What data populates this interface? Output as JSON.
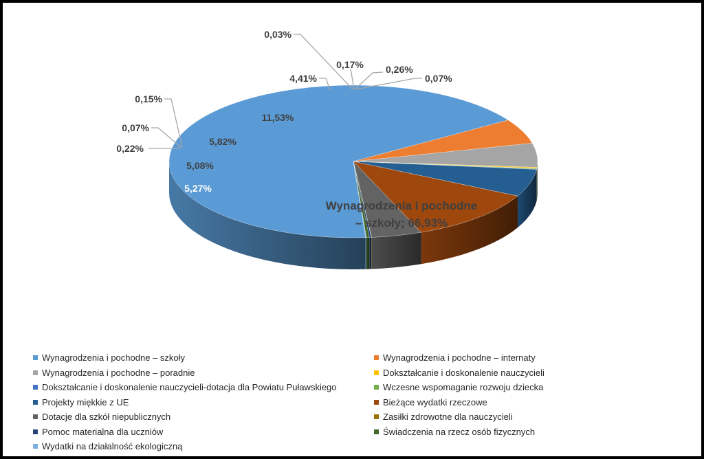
{
  "chart_data": {
    "type": "pie",
    "title": "",
    "legend_position": "bottom",
    "slices": [
      {
        "name": "Wynagrodzenia i pochodne – szkoły",
        "value": 66.93,
        "label": "Wynagrodzenia i pochodne – szkoły; 66,93%",
        "color": "#5B9BD5"
      },
      {
        "name": "Wynagrodzenia i pochodne – internaty",
        "value": 5.27,
        "label": "5,27%",
        "color": "#ED7D31"
      },
      {
        "name": "Wynagrodzenia i pochodne – poradnie",
        "value": 5.08,
        "label": "5,08%",
        "color": "#A5A5A5"
      },
      {
        "name": "Dokształcanie i doskonalenie nauczycieli",
        "value": 0.22,
        "label": "0,22%",
        "color": "#FFC000"
      },
      {
        "name": "Dokształcanie i doskonalenie nauczycieli-dotacja dla Powiatu Puławskiego",
        "value": 0.07,
        "label": "0,07%",
        "color": "#4472C4"
      },
      {
        "name": "Wczesne wspomaganie rozwoju dziecka",
        "value": 0.15,
        "label": "0,15%",
        "color": "#70AD47"
      },
      {
        "name": "Projekty miękkie z UE",
        "value": 5.82,
        "label": "5,82%",
        "color": "#255E91"
      },
      {
        "name": "Bieżące wydatki rzeczowe",
        "value": 11.53,
        "label": "11,53%",
        "color": "#9E480E"
      },
      {
        "name": "Dotacje dla szkół niepublicznych",
        "value": 4.41,
        "label": "4,41%",
        "color": "#636363"
      },
      {
        "name": "Zasiłki zdrowotne dla nauczycieli",
        "value": 0.03,
        "label": "0,03%",
        "color": "#997300"
      },
      {
        "name": "Pomoc materialna dla uczniów",
        "value": 0.17,
        "label": "0,17%",
        "color": "#264478"
      },
      {
        "name": "Świadczenia na rzecz osób fizycznych",
        "value": 0.26,
        "label": "0,26%",
        "color": "#43682B"
      },
      {
        "name": "Wydatki na działalność ekologiczną",
        "value": 0.07,
        "label": "0,07%",
        "color": "#7CAFDD"
      }
    ]
  }
}
